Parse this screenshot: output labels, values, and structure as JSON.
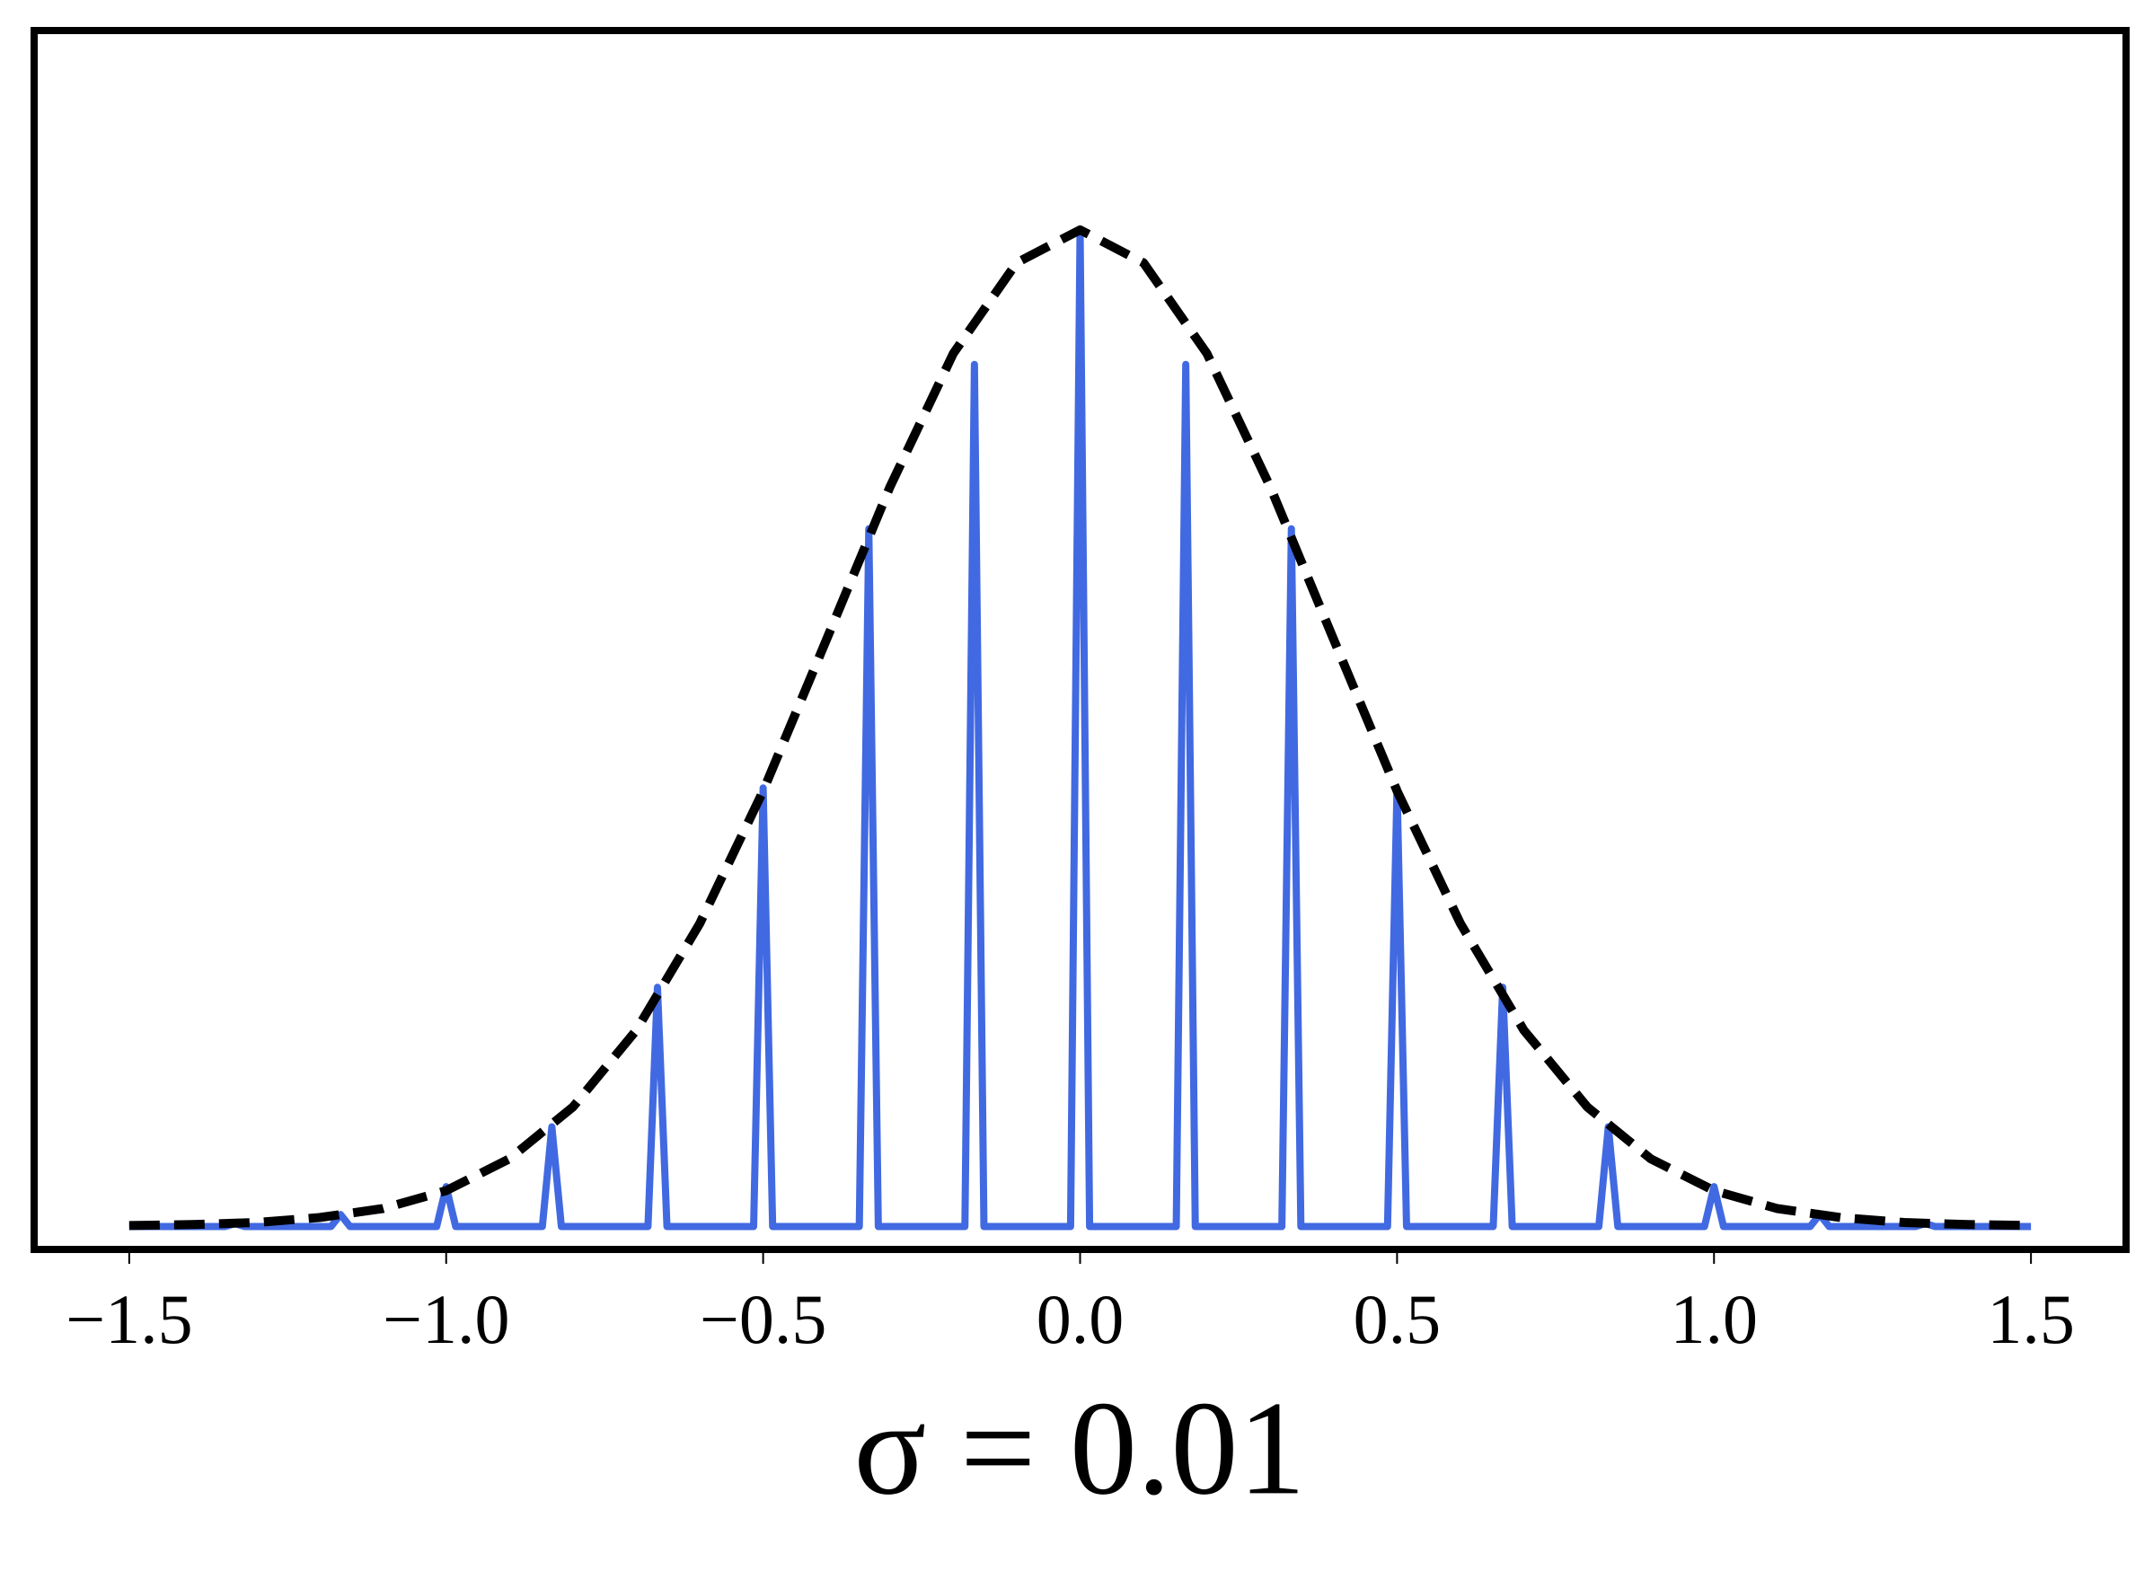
{
  "chart_data": {
    "type": "line",
    "xlabel": "σ = 0.01",
    "xlim": [
      -1.65,
      1.65
    ],
    "ylim": [
      -0.023,
      1.2
    ],
    "xticks": [
      {
        "value": -1.5,
        "label": "−1.5"
      },
      {
        "value": -1.0,
        "label": "−1.0"
      },
      {
        "value": -0.5,
        "label": "−0.5"
      },
      {
        "value": 0,
        "label": "0.0"
      },
      0.5,
      {
        "value": 1.0,
        "label": "1.0"
      },
      1.5
    ],
    "series": [
      {
        "color": "#4169e1",
        "style": "solid",
        "x": [
          -1.5,
          -1.485,
          -1.3483,
          -1.3333,
          -1.3183,
          -1.1817,
          -1.1667,
          -1.1517,
          -1.015,
          -1,
          -0.985,
          -0.8483,
          -0.8333,
          -0.8183,
          -0.6817,
          -0.6667,
          -0.6517,
          -0.515,
          -0.5,
          -0.485,
          -0.3483,
          -0.3333,
          -0.3183,
          -0.1817,
          -0.1667,
          -0.1517,
          -0.015,
          0,
          0.015,
          0.1517,
          0.1667,
          0.1817,
          0.3183,
          0.3333,
          0.3483,
          0.485,
          0.5,
          0.515,
          0.6517,
          0.6667,
          0.6817,
          0.8183,
          0.8333,
          0.8483,
          0.985,
          1,
          1.015,
          1.1517,
          1.1667,
          1.1817,
          1.3183,
          1.3333,
          1.3483,
          1.485,
          1.5
        ],
        "values": [
          0,
          0,
          0,
          0.003,
          0,
          0,
          0.012,
          0,
          0,
          0.04,
          0,
          0,
          0.1,
          0,
          0,
          0.24,
          0,
          0,
          0.44,
          0,
          0,
          0.7,
          0,
          0,
          0.865,
          0,
          0,
          1,
          0,
          0,
          0.865,
          0,
          0,
          0.7,
          0,
          0,
          0.44,
          0,
          0,
          0.24,
          0,
          0,
          0.1,
          0,
          0,
          0.04,
          0,
          0,
          0.012,
          0,
          0,
          0.003,
          0,
          0,
          0
        ]
      },
      {
        "color": "#000000",
        "style": "dashed",
        "x": [
          -1.5,
          -1.4,
          -1.3,
          -1.2,
          -1.1,
          -1.0,
          -0.9,
          -0.8,
          -0.7,
          -0.6,
          -0.5,
          -0.4,
          -0.3,
          -0.2,
          -0.1,
          0,
          0.1,
          0.2,
          0.3,
          0.4,
          0.5,
          0.6,
          0.7,
          0.8,
          0.9,
          1.0,
          1.1,
          1.2,
          1.3,
          1.4,
          1.5
        ],
        "values": [
          0.001,
          0.002,
          0.004,
          0.009,
          0.018,
          0.036,
          0.068,
          0.12,
          0.197,
          0.304,
          0.437,
          0.589,
          0.742,
          0.876,
          0.967,
          1,
          0.967,
          0.876,
          0.742,
          0.589,
          0.437,
          0.304,
          0.197,
          0.12,
          0.068,
          0.036,
          0.018,
          0.009,
          0.004,
          0.002,
          0.001
        ]
      }
    ]
  }
}
